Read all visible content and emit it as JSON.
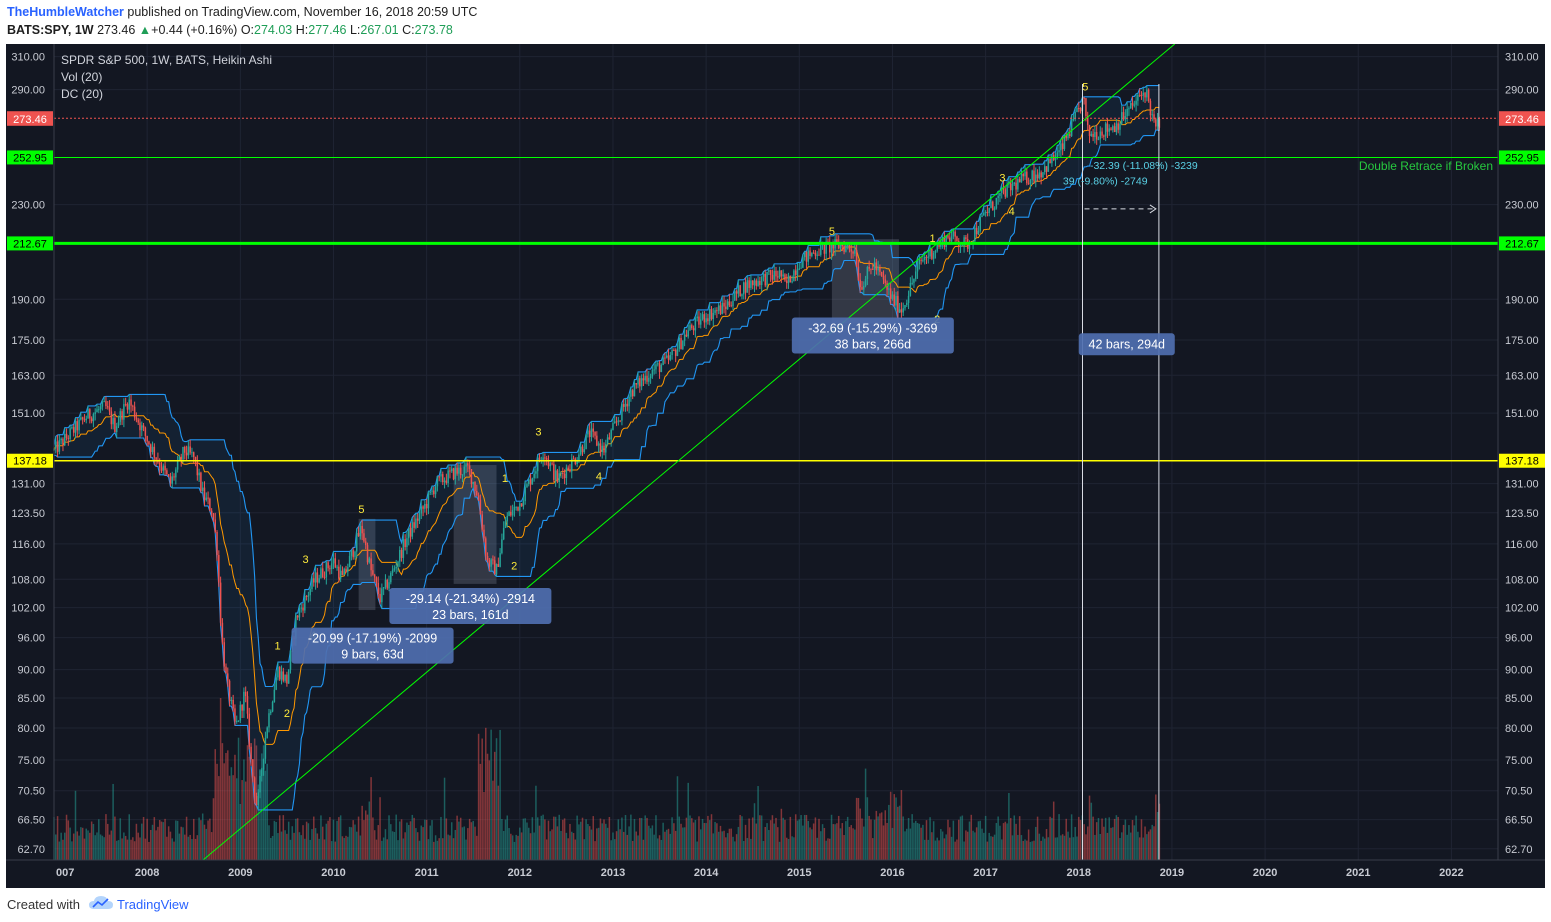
{
  "header": {
    "author": "TheHumbleWatcher",
    "published": "published on TradingView.com, November 16, 2018 20:59 UTC",
    "symbol": "BATS:SPY, 1W",
    "last": "273.46",
    "change_arrow": "▲",
    "change": "+0.44 (+0.16%)",
    "ohlc": [
      {
        "label": "O:",
        "value": "274.03"
      },
      {
        "label": "H:",
        "value": "277.46"
      },
      {
        "label": "L:",
        "value": "267.01"
      },
      {
        "label": "C:",
        "value": "273.78"
      }
    ]
  },
  "footer": {
    "created": "Created with",
    "brand": "TradingView"
  },
  "colors": {
    "background": "#131722",
    "bull": "#26a69a",
    "bear": "#ef5350",
    "donchian": "#2196f3",
    "basis": "#ff9800",
    "green_level": "#00ff00",
    "yellow_level": "#ffff00"
  },
  "chart_data": {
    "type": "candlestick",
    "legend": [
      "SPDR S&P 500, 1W, BATS, Heikin Ashi",
      "Vol (20)",
      "DC (20)"
    ],
    "x_ticks": [
      "007",
      "2008",
      "2009",
      "2010",
      "2011",
      "2012",
      "2013",
      "2014",
      "2015",
      "2016",
      "2017",
      "2018",
      "2019",
      "2020",
      "2021",
      "2022"
    ],
    "x_range": [
      2007.0,
      2022.5
    ],
    "y_scale": "log",
    "y_range": [
      61.3,
      318.0
    ],
    "y_ticks": [
      "62.70",
      "66.50",
      "70.50",
      "75.00",
      "80.00",
      "85.00",
      "90.00",
      "96.00",
      "102.00",
      "108.00",
      "116.00",
      "123.50",
      "131.00",
      "151.00",
      "163.00",
      "175.00",
      "190.00",
      "230.00",
      "290.00",
      "310.00"
    ],
    "price_path": [
      [
        2007.0,
        140
      ],
      [
        2007.35,
        150
      ],
      [
        2007.55,
        153
      ],
      [
        2007.65,
        147
      ],
      [
        2007.8,
        155
      ],
      [
        2007.95,
        146
      ],
      [
        2008.1,
        138
      ],
      [
        2008.25,
        131
      ],
      [
        2008.4,
        140
      ],
      [
        2008.5,
        138
      ],
      [
        2008.6,
        128
      ],
      [
        2008.7,
        124
      ],
      [
        2008.75,
        115
      ],
      [
        2008.8,
        96
      ],
      [
        2008.85,
        88
      ],
      [
        2008.95,
        80
      ],
      [
        2009.05,
        86
      ],
      [
        2009.12,
        74
      ],
      [
        2009.18,
        68
      ],
      [
        2009.28,
        80
      ],
      [
        2009.4,
        90
      ],
      [
        2009.5,
        88
      ],
      [
        2009.6,
        100
      ],
      [
        2009.8,
        108
      ],
      [
        2010.0,
        112
      ],
      [
        2010.1,
        108
      ],
      [
        2010.3,
        120
      ],
      [
        2010.4,
        110
      ],
      [
        2010.5,
        104
      ],
      [
        2010.6,
        108
      ],
      [
        2010.8,
        118
      ],
      [
        2011.0,
        126
      ],
      [
        2011.1,
        131
      ],
      [
        2011.3,
        134
      ],
      [
        2011.45,
        135
      ],
      [
        2011.55,
        128
      ],
      [
        2011.65,
        112
      ],
      [
        2011.75,
        110
      ],
      [
        2011.85,
        122
      ],
      [
        2012.0,
        126
      ],
      [
        2012.25,
        140
      ],
      [
        2012.4,
        132
      ],
      [
        2012.6,
        138
      ],
      [
        2012.75,
        145
      ],
      [
        2012.9,
        140
      ],
      [
        2013.0,
        146
      ],
      [
        2013.2,
        158
      ],
      [
        2013.4,
        164
      ],
      [
        2013.6,
        168
      ],
      [
        2013.8,
        178
      ],
      [
        2014.0,
        184
      ],
      [
        2014.2,
        187
      ],
      [
        2014.4,
        195
      ],
      [
        2014.6,
        198
      ],
      [
        2014.8,
        200
      ],
      [
        2014.85,
        195
      ],
      [
        2015.0,
        205
      ],
      [
        2015.2,
        210
      ],
      [
        2015.45,
        212
      ],
      [
        2015.6,
        210
      ],
      [
        2015.65,
        195
      ],
      [
        2015.8,
        204
      ],
      [
        2016.0,
        190
      ],
      [
        2016.1,
        186
      ],
      [
        2016.3,
        205
      ],
      [
        2016.5,
        212
      ],
      [
        2016.6,
        216
      ],
      [
        2016.8,
        212
      ],
      [
        2017.0,
        226
      ],
      [
        2017.2,
        236
      ],
      [
        2017.4,
        242
      ],
      [
        2017.6,
        246
      ],
      [
        2017.8,
        256
      ],
      [
        2018.0,
        278
      ],
      [
        2018.05,
        285
      ],
      [
        2018.1,
        265
      ],
      [
        2018.2,
        266
      ],
      [
        2018.4,
        270
      ],
      [
        2018.6,
        282
      ],
      [
        2018.72,
        290
      ],
      [
        2018.78,
        276
      ],
      [
        2018.82,
        268
      ],
      [
        2018.88,
        273
      ]
    ],
    "price_labels": [
      {
        "value": 273.78,
        "text": "273.78",
        "color": "#ef5350"
      },
      {
        "value": 273.46,
        "text": "273.46",
        "color": "#ef5350"
      },
      {
        "value": 252.95,
        "text": "252.95",
        "color": "#00ff00"
      },
      {
        "value": 212.67,
        "text": "212.67",
        "color": "#00ff00"
      },
      {
        "value": 137.18,
        "text": "137.18",
        "color": "#ffff00"
      }
    ],
    "horizontal_levels": [
      {
        "value": 252.95,
        "color": "#00ff00",
        "width": 1
      },
      {
        "value": 212.67,
        "color": "#00ff00",
        "width": 3
      },
      {
        "value": 137.18,
        "color": "#ffff00",
        "width": 1.5
      },
      {
        "value": 273.78,
        "color": "#ef5350",
        "width": 1,
        "dashed": true
      }
    ],
    "trendline": {
      "x1": 2008.6,
      "y1": 61.3,
      "x2": 2019.03,
      "y2": 318.0,
      "color": "#00ff00"
    },
    "level_note": {
      "text": "Double Retrace if Broken",
      "value": 248.5
    },
    "wave_labels": [
      {
        "t": "5",
        "x": 2010.3,
        "y": 124.5
      },
      {
        "t": "3",
        "x": 2009.7,
        "y": 112.5
      },
      {
        "t": "4",
        "x": 2009.78,
        "y": 96.5
      },
      {
        "t": "1",
        "x": 2009.4,
        "y": 94.5
      },
      {
        "t": "2",
        "x": 2009.5,
        "y": 82.5
      },
      {
        "t": "1",
        "x": 2011.84,
        "y": 132.5
      },
      {
        "t": "2",
        "x": 2011.94,
        "y": 111.0
      },
      {
        "t": "3",
        "x": 2012.2,
        "y": 145.5
      },
      {
        "t": "4",
        "x": 2012.85,
        "y": 133.0
      },
      {
        "t": "5",
        "x": 2015.35,
        "y": 218.0
      },
      {
        "t": "1",
        "x": 2016.43,
        "y": 215.0
      },
      {
        "t": "2",
        "x": 2016.48,
        "y": 182.5
      },
      {
        "t": "3",
        "x": 2017.18,
        "y": 243.0
      },
      {
        "t": "4",
        "x": 2017.28,
        "y": 227.0
      },
      {
        "t": "5",
        "x": 2018.07,
        "y": 292.0
      }
    ],
    "annotations": [
      {
        "line1": "-20.99 (-17.19%) -2099",
        "line2": "9 bars, 63d",
        "x": 2009.55,
        "y": 96.0
      },
      {
        "line1": "-29.14 (-21.34%) -2914",
        "line2": "23 bars, 161d",
        "x": 2010.6,
        "y": 104.0
      },
      {
        "line1": "-32.69 (-15.29%) -3269",
        "line2": "38 bars, 266d",
        "x": 2014.92,
        "y": 179.5
      },
      {
        "line1": "42 bars, 294d",
        "x": 2018.0,
        "y": 173.5
      }
    ],
    "inline_labels": [
      {
        "t": "-32.39 (-11.08%) -3239",
        "x": 2018.12,
        "y": 249.0
      },
      {
        "t": "39 (-9.80%) -2749",
        "x": 2017.83,
        "y": 241.5
      }
    ],
    "shaded_ranges": [
      {
        "x1": 2010.27,
        "x2": 2010.45,
        "y1": 101.5,
        "y2": 122.0
      },
      {
        "x1": 2011.29,
        "x2": 2011.75,
        "y1": 107.0,
        "y2": 136.0
      },
      {
        "x1": 2015.35,
        "x2": 2016.07,
        "y1": 181.0,
        "y2": 214.5
      }
    ],
    "measure_range": {
      "x1": 2018.04,
      "x2": 2018.86
    }
  }
}
